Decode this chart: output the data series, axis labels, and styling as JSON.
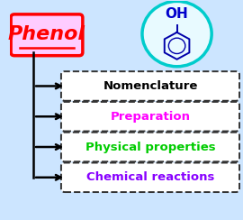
{
  "title": "Phenol",
  "background_color": "#cce5ff",
  "phenol_box_bg": "#ffccff",
  "phenol_box_edge": "#ff0000",
  "phenol_text_color": "#ff0000",
  "items": [
    {
      "label": "Nomenclature",
      "color": "#000000"
    },
    {
      "label": "Preparation",
      "color": "#ff00ff"
    },
    {
      "label": "Physical properties",
      "color": "#00cc00"
    },
    {
      "label": "Chemical reactions",
      "color": "#8800ff"
    }
  ],
  "circle_edge_color": "#00cccc",
  "circle_face_color": "#e8faff",
  "oh_color": "#0000cc",
  "benzene_color": "#0000aa",
  "arrow_color": "#000000",
  "line_color": "#000000",
  "dashed_box_color": "#333333"
}
